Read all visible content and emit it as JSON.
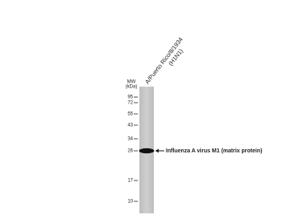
{
  "mw_label": [
    "MW",
    "(kDa)"
  ],
  "lane": {
    "label_lines": [
      "A/Puerto Rico/8/1934",
      "(H1N1)"
    ]
  },
  "markers": [
    "95",
    "72",
    "55",
    "43",
    "34",
    "26",
    "17",
    "10"
  ],
  "band": {
    "label": "Influenza A virus M1 (matrix protein)"
  }
}
